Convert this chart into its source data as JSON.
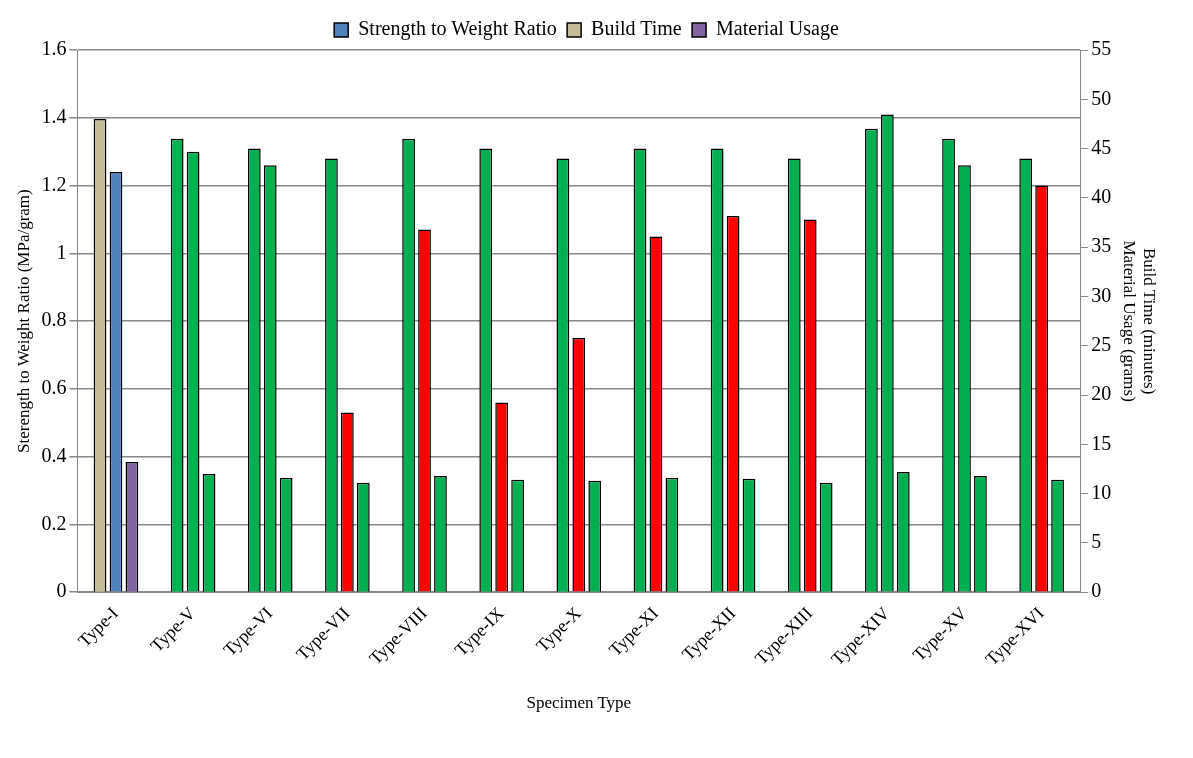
{
  "chart_data": {
    "type": "bar",
    "categories": [
      "Type-I",
      "Type-V",
      "Type-VI",
      "Type-VII",
      "Type-VIII",
      "Type-IX",
      "Type-X",
      "Type-XI",
      "Type-XII",
      "Type-XIII",
      "Type-XIV",
      "Type-XV",
      "Type-XVI"
    ],
    "series": [
      {
        "name": "Build Time",
        "axis": "y2",
        "color": "#c4bd97",
        "colors": [
          "#c4bd97",
          "#00b050",
          "#00b050",
          "#00b050",
          "#00b050",
          "#00b050",
          "#00b050",
          "#00b050",
          "#00b050",
          "#00b050",
          "#00b050",
          "#00b050",
          "#00b050"
        ],
        "values": [
          48,
          46,
          45,
          44,
          46,
          45,
          44,
          45,
          45,
          44,
          47,
          46,
          44
        ]
      },
      {
        "name": "Strength to Weight Ratio",
        "color": "#4f81bd",
        "colors": [
          "#4f81bd",
          "#00b050",
          "#00b050",
          "#ff0000",
          "#ff0000",
          "#ff0000",
          "#ff0000",
          "#ff0000",
          "#ff0000",
          "#ff0000",
          "#00b050",
          "#00b050",
          "#ff0000"
        ],
        "values": [
          1.24,
          1.3,
          1.26,
          0.53,
          1.07,
          0.56,
          0.75,
          1.05,
          1.11,
          1.1,
          1.41,
          1.26,
          1.2
        ]
      },
      {
        "name": "Material Usage",
        "axis": "y2",
        "color": "#8064a2",
        "colors": [
          "#8064a2",
          "#00b050",
          "#00b050",
          "#00b050",
          "#00b050",
          "#00b050",
          "#00b050",
          "#00b050",
          "#00b050",
          "#00b050",
          "#00b050",
          "#00b050",
          "#00b050"
        ],
        "values": [
          13.2,
          12.0,
          11.6,
          11.1,
          11.8,
          11.4,
          11.3,
          11.6,
          11.5,
          11.1,
          12.2,
          11.8,
          11.4
        ]
      }
    ],
    "xlabel": "Specimen Type",
    "ylabel": "Sterength to Weight Ratio (MPa/gram)",
    "y2label": "Build Time (minutes)\nMaterial Usage (grams)",
    "ylim": [
      0,
      1.6
    ],
    "yticks": [
      0,
      0.2,
      0.4,
      0.6,
      0.8,
      1,
      1.2,
      1.4,
      1.6
    ],
    "y2lim": [
      0,
      55
    ],
    "y2ticks": [
      0,
      5,
      10,
      15,
      20,
      25,
      30,
      35,
      40,
      45,
      50,
      55
    ],
    "grid": "y",
    "legend": "top"
  }
}
